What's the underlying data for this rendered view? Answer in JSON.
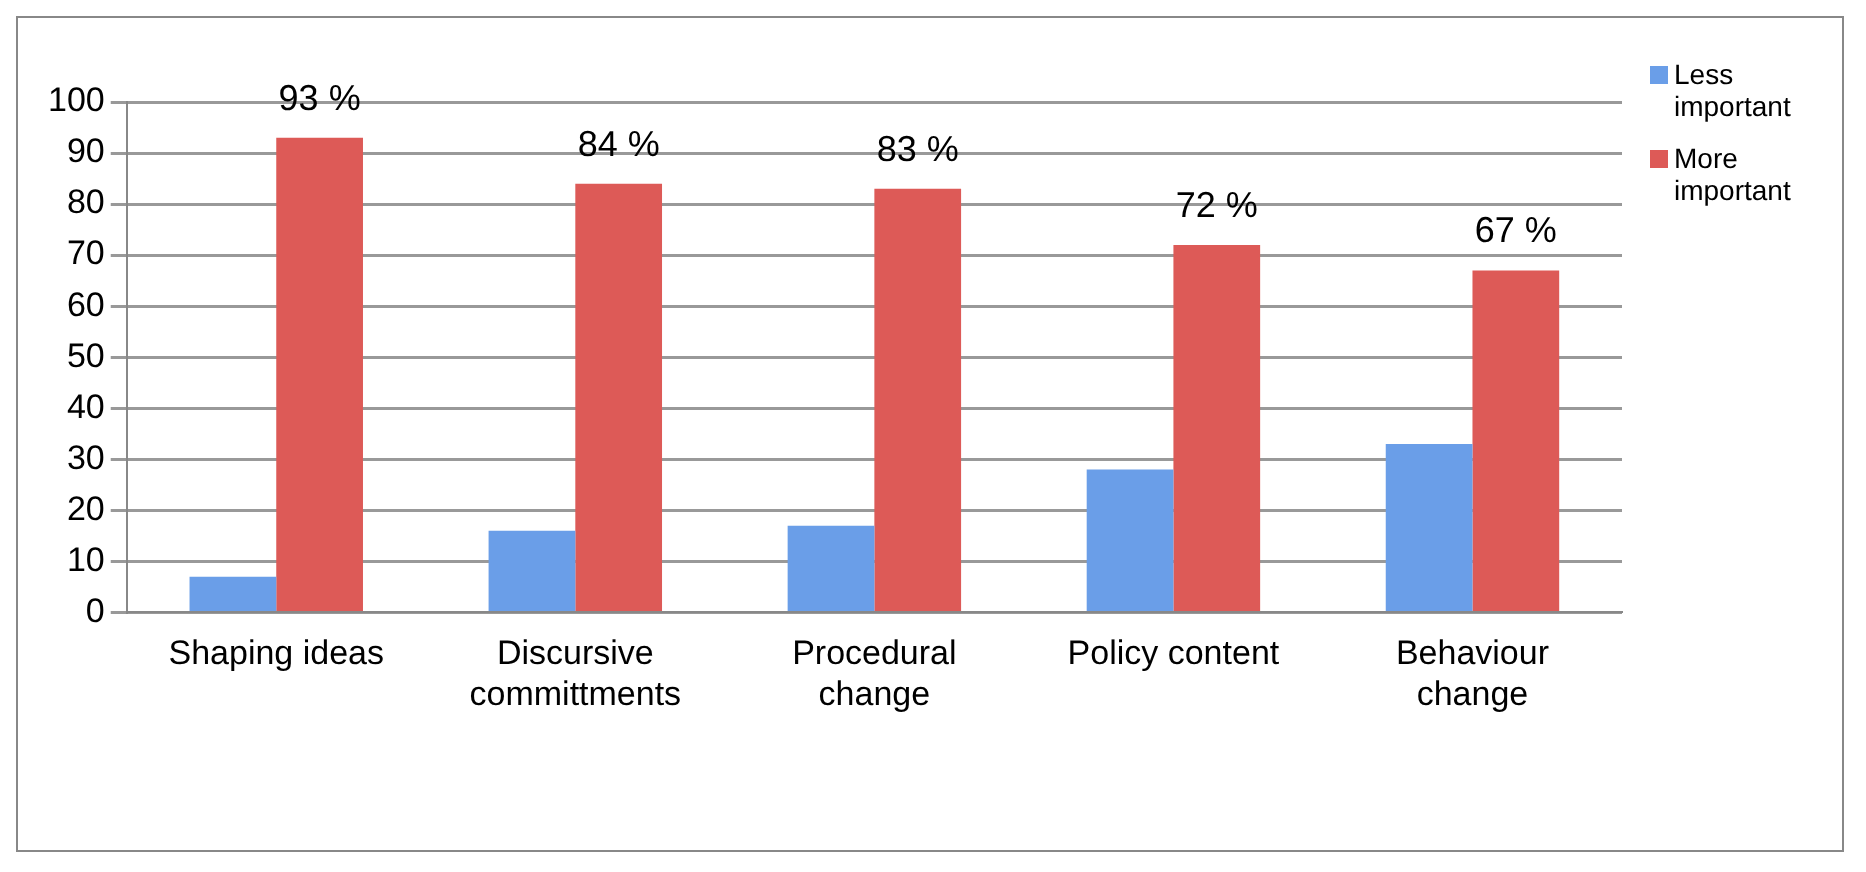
{
  "chart_data": {
    "type": "bar",
    "categories": [
      "Shaping ideas",
      "Discursive committments",
      "Procedural change",
      "Policy content",
      "Behaviour change"
    ],
    "series": [
      {
        "name": "Less important",
        "color": "#6a9ee8",
        "values": [
          7,
          16,
          17,
          28,
          33
        ]
      },
      {
        "name": "More important",
        "color": "#dd5a57",
        "values": [
          93,
          84,
          83,
          72,
          67
        ],
        "value_labels": [
          "93 %",
          "84 %",
          "83 %",
          "72 %",
          "67 %"
        ]
      }
    ],
    "ylim": [
      0,
      100
    ],
    "yticks": [
      0,
      10,
      20,
      30,
      40,
      50,
      60,
      70,
      80,
      90,
      100
    ],
    "grid": "y",
    "legend": "top right"
  }
}
